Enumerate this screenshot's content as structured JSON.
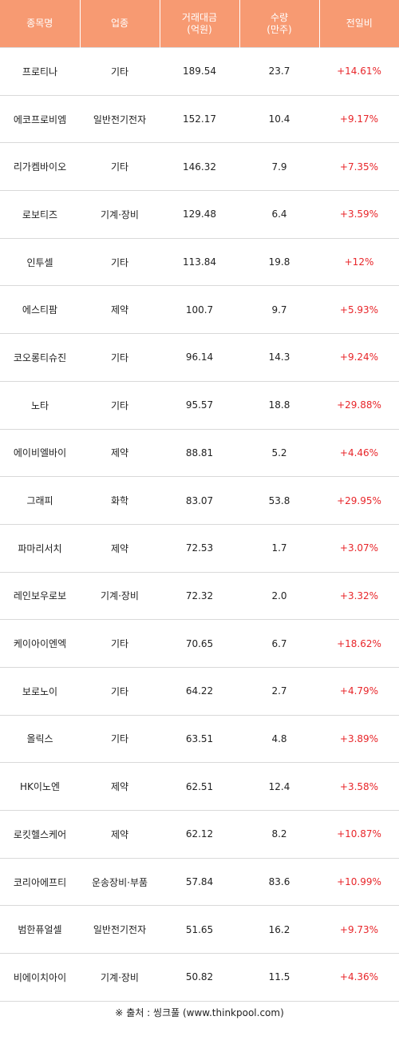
{
  "headers": {
    "name": "종목명",
    "sector": "업종",
    "value_line1": "거래대금",
    "value_line2": "(억원)",
    "volume_line1": "수량",
    "volume_line2": "(만주)",
    "change": "전일비"
  },
  "rows": [
    {
      "name": "프로티나",
      "sector": "기타",
      "value": "189.54",
      "volume": "23.7",
      "change": "+14.61%"
    },
    {
      "name": "에코프로비엠",
      "sector": "일반전기전자",
      "value": "152.17",
      "volume": "10.4",
      "change": "+9.17%"
    },
    {
      "name": "리가켐바이오",
      "sector": "기타",
      "value": "146.32",
      "volume": "7.9",
      "change": "+7.35%"
    },
    {
      "name": "로보티즈",
      "sector": "기계·장비",
      "value": "129.48",
      "volume": "6.4",
      "change": "+3.59%"
    },
    {
      "name": "인투셀",
      "sector": "기타",
      "value": "113.84",
      "volume": "19.8",
      "change": "+12%"
    },
    {
      "name": "에스티팜",
      "sector": "제약",
      "value": "100.7",
      "volume": "9.7",
      "change": "+5.93%"
    },
    {
      "name": "코오롱티슈진",
      "sector": "기타",
      "value": "96.14",
      "volume": "14.3",
      "change": "+9.24%"
    },
    {
      "name": "노타",
      "sector": "기타",
      "value": "95.57",
      "volume": "18.8",
      "change": "+29.88%"
    },
    {
      "name": "에이비엘바이",
      "sector": "제약",
      "value": "88.81",
      "volume": "5.2",
      "change": "+4.46%"
    },
    {
      "name": "그래피",
      "sector": "화학",
      "value": "83.07",
      "volume": "53.8",
      "change": "+29.95%"
    },
    {
      "name": "파마리서치",
      "sector": "제약",
      "value": "72.53",
      "volume": "1.7",
      "change": "+3.07%"
    },
    {
      "name": "레인보우로보",
      "sector": "기계·장비",
      "value": "72.32",
      "volume": "2.0",
      "change": "+3.32%"
    },
    {
      "name": "케이아이엔엑",
      "sector": "기타",
      "value": "70.65",
      "volume": "6.7",
      "change": "+18.62%"
    },
    {
      "name": "보로노이",
      "sector": "기타",
      "value": "64.22",
      "volume": "2.7",
      "change": "+4.79%"
    },
    {
      "name": "올릭스",
      "sector": "기타",
      "value": "63.51",
      "volume": "4.8",
      "change": "+3.89%"
    },
    {
      "name": "HK이노엔",
      "sector": "제약",
      "value": "62.51",
      "volume": "12.4",
      "change": "+3.58%"
    },
    {
      "name": "로킷헬스케어",
      "sector": "제약",
      "value": "62.12",
      "volume": "8.2",
      "change": "+10.87%"
    },
    {
      "name": "코리아에프티",
      "sector": "운송장비·부품",
      "value": "57.84",
      "volume": "83.6",
      "change": "+10.99%"
    },
    {
      "name": "범한퓨얼셀",
      "sector": "일반전기전자",
      "value": "51.65",
      "volume": "16.2",
      "change": "+9.73%"
    },
    {
      "name": "비에이치아이",
      "sector": "기계·장비",
      "value": "50.82",
      "volume": "11.5",
      "change": "+4.36%"
    }
  ],
  "source": {
    "mark": "※",
    "text": "출처 : 씽크풀 (www.thinkpool.com)"
  },
  "colors": {
    "header_bg": "#f79a72",
    "header_text": "#ffffff",
    "change_text": "#e8262a",
    "divider": "#d9d9d9"
  }
}
